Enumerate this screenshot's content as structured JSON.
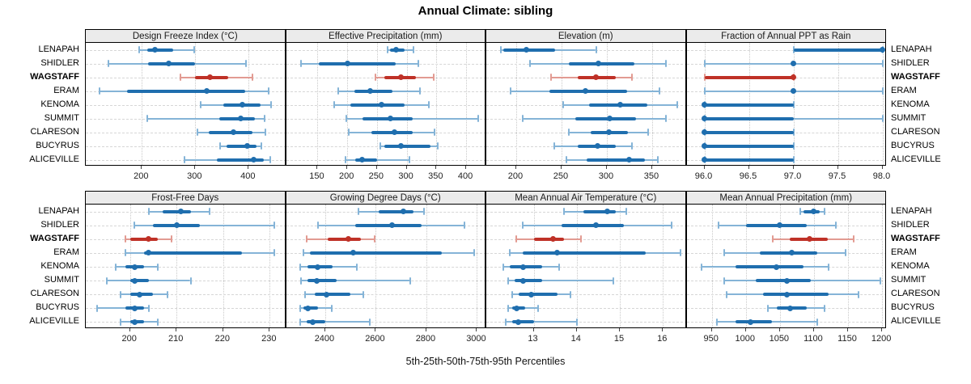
{
  "title": "Annual Climate: sibling",
  "caption": "5th-25th-50th-75th-95th Percentiles",
  "colors": {
    "blue": "#1f6eae",
    "blue_light": "#85b4d7",
    "red": "#bf3127",
    "red_light": "#e29b92",
    "grid": "#cccccc",
    "strip_bg": "#ebebeb",
    "border": "#000000"
  },
  "stations": [
    {
      "name": "LENAPAH",
      "highlight": false
    },
    {
      "name": "SHIDLER",
      "highlight": false
    },
    {
      "name": "WAGSTAFF",
      "highlight": true
    },
    {
      "name": "ERAM",
      "highlight": false
    },
    {
      "name": "KENOMA",
      "highlight": false
    },
    {
      "name": "SUMMIT",
      "highlight": false
    },
    {
      "name": "CLARESON",
      "highlight": false
    },
    {
      "name": "BUCYRUS",
      "highlight": false
    },
    {
      "name": "ALICEVILLE",
      "highlight": false
    }
  ],
  "chart_data": {
    "type": "scatter",
    "subtype": "trellis-percentile-dotplot",
    "percentile_levels": [
      5,
      25,
      50,
      75,
      95
    ],
    "station_order": [
      "LENAPAH",
      "SHIDLER",
      "WAGSTAFF",
      "ERAM",
      "KENOMA",
      "SUMMIT",
      "CLARESON",
      "BUCYRUS",
      "ALICEVILLE"
    ],
    "panels": [
      {
        "title": "Design Freeze Index (°C)",
        "xlim": [
          95,
          470
        ],
        "ticks": [
          200,
          300,
          400
        ],
        "tick_labels": [
          "200",
          "300",
          "400"
        ],
        "values": [
          [
            195,
            210,
            225,
            258,
            298
          ],
          [
            138,
            212,
            250,
            300,
            395
          ],
          [
            272,
            300,
            327,
            362,
            407
          ],
          [
            120,
            173,
            321,
            393,
            437
          ],
          [
            310,
            352,
            388,
            422,
            442
          ],
          [
            210,
            345,
            385,
            412,
            430
          ],
          [
            304,
            325,
            372,
            407,
            432
          ],
          [
            347,
            358,
            397,
            414,
            424
          ],
          [
            280,
            340,
            410,
            428,
            440
          ]
        ]
      },
      {
        "title": "Effective Precipitation (mm)",
        "xlim": [
          97,
          434
        ],
        "ticks": [
          150,
          200,
          250,
          300,
          350,
          400
        ],
        "tick_labels": [
          "150",
          "200",
          "250",
          "300",
          "350",
          "400"
        ],
        "values": [
          [
            268,
            272,
            282,
            297,
            312
          ],
          [
            122,
            152,
            200,
            282,
            320
          ],
          [
            248,
            262,
            291,
            316,
            345
          ],
          [
            185,
            212,
            238,
            276,
            322
          ],
          [
            178,
            205,
            257,
            297,
            337
          ],
          [
            198,
            226,
            273,
            310,
            420
          ],
          [
            203,
            240,
            279,
            310,
            347
          ],
          [
            255,
            262,
            291,
            340,
            352
          ],
          [
            197,
            214,
            225,
            250,
            305
          ]
        ]
      },
      {
        "title": "Elevation (m)",
        "xlim": [
          167,
          388
        ],
        "ticks": [
          200,
          250,
          300,
          350
        ],
        "tick_labels": [
          "200",
          "250",
          "300",
          "350"
        ],
        "values": [
          [
            183,
            186,
            211,
            243,
            288
          ],
          [
            215,
            258,
            291,
            330,
            365
          ],
          [
            238,
            268,
            288,
            310,
            328
          ],
          [
            194,
            237,
            276,
            322,
            358
          ],
          [
            252,
            280,
            315,
            345,
            378
          ],
          [
            207,
            265,
            303,
            332,
            365
          ],
          [
            258,
            282,
            302,
            323,
            346
          ],
          [
            242,
            268,
            290,
            310,
            328
          ],
          [
            255,
            278,
            325,
            342,
            356
          ]
        ]
      },
      {
        "title": "Fraction of Annual PPT as Rain",
        "xlim": [
          95.8,
          98.05
        ],
        "ticks": [
          96,
          96.5,
          97,
          97.5,
          98
        ],
        "tick_labels": [
          "96.0",
          "96.5",
          "97.0",
          "97.5",
          "98.0"
        ],
        "values": [
          [
            97,
            97,
            98,
            98,
            98
          ],
          [
            96,
            97,
            97,
            97,
            98
          ],
          [
            96,
            96,
            97,
            97,
            97
          ],
          [
            96,
            97,
            97,
            97,
            98
          ],
          [
            96,
            96,
            96,
            97,
            97
          ],
          [
            96,
            96,
            96,
            97,
            98
          ],
          [
            96,
            96,
            96,
            97,
            97
          ],
          [
            96,
            96,
            96,
            97,
            97
          ],
          [
            96,
            96,
            96,
            97,
            97
          ]
        ]
      },
      {
        "title": "Frost-Free Days",
        "xlim": [
          190.5,
          233.5
        ],
        "ticks": [
          200,
          210,
          220,
          230
        ],
        "tick_labels": [
          "200",
          "210",
          "220",
          "230"
        ],
        "values": [
          [
            204,
            207,
            211,
            213,
            217
          ],
          [
            201,
            205,
            210,
            215,
            231
          ],
          [
            199,
            200,
            204,
            206,
            209
          ],
          [
            199,
            203,
            204,
            224,
            231
          ],
          [
            197,
            199,
            201,
            203,
            206
          ],
          [
            195,
            200,
            201,
            204,
            213
          ],
          [
            198,
            200,
            202,
            205,
            208
          ],
          [
            193,
            199,
            201,
            203,
            204
          ],
          [
            198,
            200,
            201,
            203,
            206
          ]
        ]
      },
      {
        "title": "Growing Degree Days (°C)",
        "xlim": [
          2245,
          3037
        ],
        "ticks": [
          2400,
          2600,
          2800,
          3000
        ],
        "tick_labels": [
          "2400",
          "2600",
          "2800",
          "3000"
        ],
        "values": [
          [
            2530,
            2610,
            2710,
            2750,
            2790
          ],
          [
            2370,
            2520,
            2665,
            2780,
            2950
          ],
          [
            2325,
            2410,
            2490,
            2540,
            2595
          ],
          [
            2315,
            2340,
            2510,
            2860,
            2990
          ],
          [
            2300,
            2330,
            2370,
            2430,
            2525
          ],
          [
            2305,
            2330,
            2365,
            2445,
            2735
          ],
          [
            2320,
            2360,
            2405,
            2500,
            2550
          ],
          [
            2300,
            2315,
            2330,
            2370,
            2425
          ],
          [
            2300,
            2325,
            2350,
            2400,
            2575
          ]
        ]
      },
      {
        "title": "Mean Annual Air Temperature (°C)",
        "xlim": [
          11.9,
          16.55
        ],
        "ticks": [
          13,
          14,
          15,
          16
        ],
        "tick_labels": [
          "13",
          "14",
          "15",
          "16"
        ],
        "values": [
          [
            13.7,
            14.15,
            14.7,
            14.9,
            15.15
          ],
          [
            12.75,
            13.65,
            14.45,
            15.1,
            16.2
          ],
          [
            12.6,
            13.0,
            13.45,
            13.7,
            14.1
          ],
          [
            12.45,
            12.75,
            13.55,
            15.6,
            16.4
          ],
          [
            12.3,
            12.45,
            12.75,
            13.2,
            13.6
          ],
          [
            12.4,
            12.55,
            12.75,
            13.2,
            14.85
          ],
          [
            12.5,
            12.65,
            12.95,
            13.55,
            13.85
          ],
          [
            12.4,
            12.5,
            12.6,
            12.8,
            13.1
          ],
          [
            12.35,
            12.5,
            12.65,
            13.0,
            14.0
          ]
        ]
      },
      {
        "title": "Mean Annual Precipitation (mm)",
        "xlim": [
          913,
          1207
        ],
        "ticks": [
          950,
          1000,
          1050,
          1100,
          1150,
          1200
        ],
        "tick_labels": [
          "950",
          "1000",
          "1050",
          "1100",
          "1150",
          "1200"
        ],
        "values": [
          [
            1080,
            1085,
            1100,
            1108,
            1115
          ],
          [
            960,
            1000,
            1050,
            1090,
            1132
          ],
          [
            1040,
            1065,
            1093,
            1120,
            1158
          ],
          [
            968,
            1020,
            1067,
            1105,
            1147
          ],
          [
            935,
            985,
            1045,
            1085,
            1122
          ],
          [
            968,
            1015,
            1060,
            1095,
            1198
          ],
          [
            972,
            1025,
            1060,
            1122,
            1165
          ],
          [
            1032,
            1045,
            1065,
            1090,
            1115
          ],
          [
            958,
            985,
            1007,
            1038,
            1105
          ]
        ]
      }
    ]
  }
}
